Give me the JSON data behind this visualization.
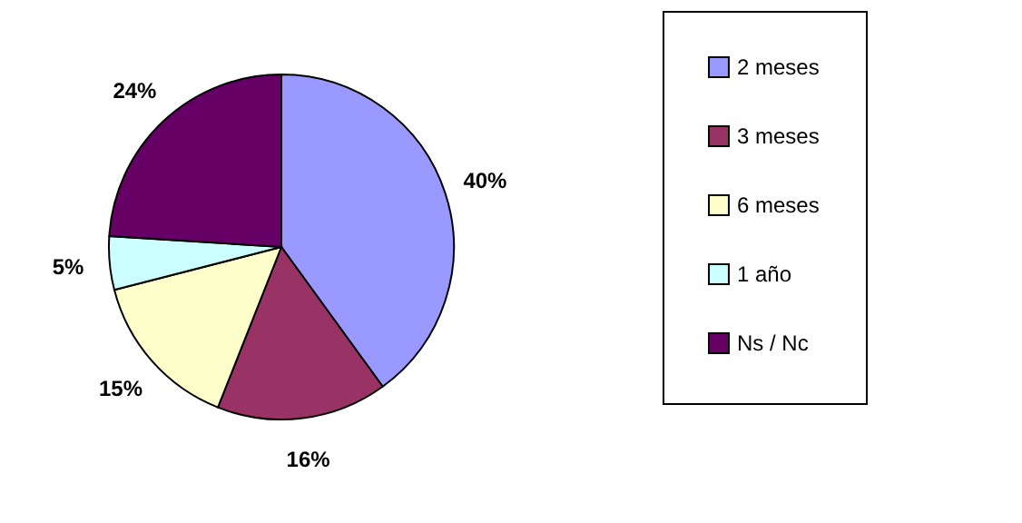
{
  "chart_data": {
    "type": "pie",
    "categories": [
      "2 meses",
      "3 meses",
      "6 meses",
      "1 año",
      "Ns / Nc"
    ],
    "values": [
      40,
      16,
      15,
      5,
      24
    ],
    "value_labels": [
      "40%",
      "16%",
      "15%",
      "5%",
      "24%"
    ],
    "colors": [
      "#9999ff",
      "#993366",
      "#ffffcc",
      "#ccffff",
      "#660066"
    ],
    "legend": "right"
  }
}
